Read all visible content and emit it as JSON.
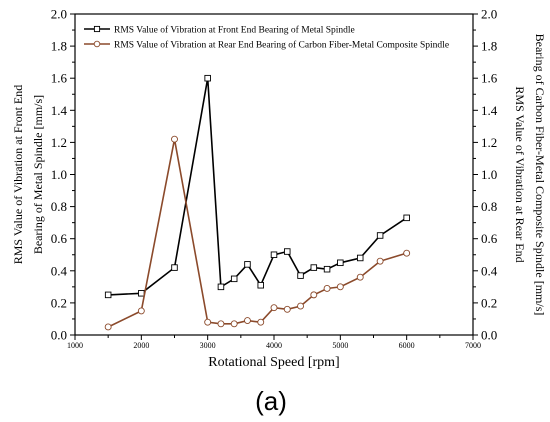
{
  "chart_data": {
    "type": "line",
    "xlabel": "Rotational Speed [rpm]",
    "ylabel_left": [
      "RMS Value of Vibration at Front End",
      "Bearing of Metal Spindle [mm/s]"
    ],
    "ylabel_right": [
      "RMS Value of Vibration at Rear End",
      "Bearing of Carbon Fiber-Metal Composite Spindle [mm/s]"
    ],
    "xlim": [
      1000,
      7000
    ],
    "ylim": [
      0,
      2.0
    ],
    "x_ticks": [
      "1000",
      "2000",
      "3000",
      "4000",
      "5000",
      "6000",
      "7000"
    ],
    "y_ticks": [
      "0.0",
      "0.2",
      "0.4",
      "0.6",
      "0.8",
      "1.0",
      "1.2",
      "1.4",
      "1.6",
      "1.8",
      "2.0"
    ],
    "legend_position": "top-left",
    "grid": false,
    "panel_label": "(a)",
    "series": [
      {
        "name": "RMS Value of Vibration at Front End Bearing of Metal Spindle",
        "color": "#000000",
        "marker": "square",
        "x": [
          1500,
          2000,
          2500,
          3000,
          3200,
          3400,
          3600,
          3800,
          4000,
          4200,
          4400,
          4600,
          4800,
          5000,
          5300,
          5600,
          6000
        ],
        "y": [
          0.25,
          0.26,
          0.42,
          1.6,
          0.3,
          0.35,
          0.44,
          0.31,
          0.5,
          0.52,
          0.37,
          0.42,
          0.41,
          0.45,
          0.48,
          0.62,
          0.73
        ]
      },
      {
        "name": "RMS Value of Vibration at Rear End Bearing of Carbon Fiber-Metal Composite Spindle",
        "color": "#8b4a2b",
        "marker": "circle",
        "x": [
          1500,
          2000,
          2500,
          3000,
          3200,
          3400,
          3600,
          3800,
          4000,
          4200,
          4400,
          4600,
          4800,
          5000,
          5300,
          5600,
          6000
        ],
        "y": [
          0.05,
          0.15,
          1.22,
          0.08,
          0.07,
          0.07,
          0.09,
          0.08,
          0.17,
          0.16,
          0.18,
          0.25,
          0.29,
          0.3,
          0.36,
          0.46,
          0.51
        ]
      }
    ]
  }
}
